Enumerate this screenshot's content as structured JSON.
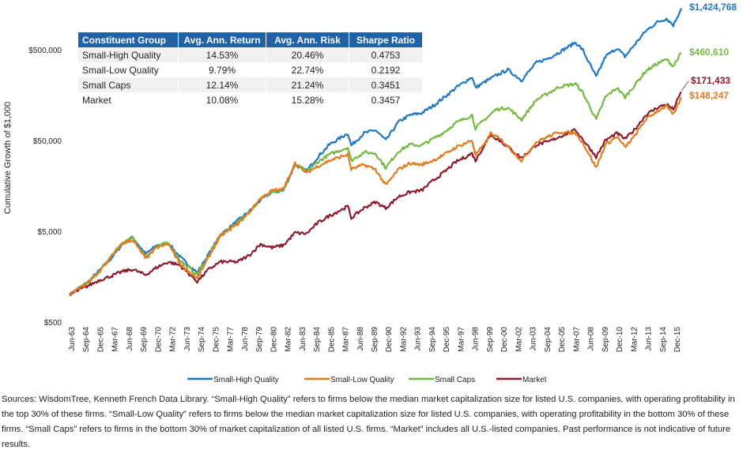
{
  "chart_data": {
    "type": "line",
    "ylabel": "Cumulative Growth of $1,000",
    "y_scale": "log",
    "ylim": [
      500,
      1500000
    ],
    "y_ticks": [
      {
        "value": 500,
        "label": "$500"
      },
      {
        "value": 5000,
        "label": "$5,000"
      },
      {
        "value": 50000,
        "label": "$50,000"
      },
      {
        "value": 500000,
        "label": "$500,000"
      }
    ],
    "x_tick_labels": [
      "Jun-63",
      "Sep-64",
      "Dec-65",
      "Mar-67",
      "Jun-68",
      "Sep-69",
      "Dec-70",
      "Mar-72",
      "Jun-73",
      "Sep-74",
      "Dec-75",
      "Mar-77",
      "Jun-78",
      "Sep-79",
      "Dec-80",
      "Mar-82",
      "Jun-83",
      "Sep-84",
      "Dec-85",
      "Mar-87",
      "Jun-88",
      "Sep-89",
      "Dec-90",
      "Mar-92",
      "Jun-93",
      "Sep-94",
      "Dec-95",
      "Mar-97",
      "Jun-98",
      "Sep-99",
      "Dec-00",
      "Mar-02",
      "Jun-03",
      "Sep-04",
      "Dec-05",
      "Mar-07",
      "Jun-08",
      "Sep-09",
      "Dec-10",
      "Mar-12",
      "Jun-13",
      "Sep-14",
      "Dec-15"
    ],
    "x_start_year": 1963.4,
    "x_end_year": 2016.6,
    "series": [
      {
        "name": "Small-High Quality",
        "color": "#1f77c4",
        "end_label": "$1,424,768",
        "points": [
          [
            1963.4,
            1000
          ],
          [
            1965,
            1380
          ],
          [
            1966,
            1850
          ],
          [
            1967,
            2500
          ],
          [
            1968,
            3600
          ],
          [
            1968.9,
            4300
          ],
          [
            1970,
            2800
          ],
          [
            1971,
            3500
          ],
          [
            1972,
            3700
          ],
          [
            1973,
            2600
          ],
          [
            1974.5,
            1750
          ],
          [
            1975.5,
            2800
          ],
          [
            1976.5,
            4500
          ],
          [
            1978,
            6500
          ],
          [
            1979,
            8200
          ],
          [
            1980,
            11000
          ],
          [
            1981,
            13500
          ],
          [
            1982,
            14000
          ],
          [
            1983,
            27000
          ],
          [
            1984,
            23000
          ],
          [
            1985,
            33000
          ],
          [
            1986,
            45000
          ],
          [
            1987.6,
            60000
          ],
          [
            1987.9,
            44000
          ],
          [
            1989,
            60000
          ],
          [
            1990,
            65000
          ],
          [
            1990.9,
            50000
          ],
          [
            1992,
            80000
          ],
          [
            1993,
            95000
          ],
          [
            1994,
            100000
          ],
          [
            1995,
            120000
          ],
          [
            1996,
            150000
          ],
          [
            1997,
            190000
          ],
          [
            1998.4,
            250000
          ],
          [
            1998.7,
            190000
          ],
          [
            1999.5,
            220000
          ],
          [
            2000.5,
            260000
          ],
          [
            2001.5,
            300000
          ],
          [
            2002.7,
            230000
          ],
          [
            2004,
            360000
          ],
          [
            2005,
            400000
          ],
          [
            2006,
            470000
          ],
          [
            2007.4,
            600000
          ],
          [
            2008,
            500000
          ],
          [
            2009.2,
            250000
          ],
          [
            2010,
            420000
          ],
          [
            2011,
            520000
          ],
          [
            2011.7,
            420000
          ],
          [
            2012.5,
            560000
          ],
          [
            2013.5,
            800000
          ],
          [
            2014.5,
            1000000
          ],
          [
            2015.3,
            1100000
          ],
          [
            2015.9,
            930000
          ],
          [
            2016.6,
            1424768
          ]
        ]
      },
      {
        "name": "Small-Low Quality",
        "color": "#e07b20",
        "end_label": "$148,247",
        "points": [
          [
            1963.4,
            1000
          ],
          [
            1965,
            1350
          ],
          [
            1966,
            1800
          ],
          [
            1967,
            2600
          ],
          [
            1968,
            3700
          ],
          [
            1968.9,
            4000
          ],
          [
            1970,
            2500
          ],
          [
            1971,
            3300
          ],
          [
            1972,
            3600
          ],
          [
            1973,
            2200
          ],
          [
            1974.5,
            1500
          ],
          [
            1975.5,
            2600
          ],
          [
            1976.5,
            4400
          ],
          [
            1978,
            6000
          ],
          [
            1979,
            8000
          ],
          [
            1980,
            11500
          ],
          [
            1981,
            14000
          ],
          [
            1982,
            14500
          ],
          [
            1983,
            28000
          ],
          [
            1984,
            22000
          ],
          [
            1985,
            26000
          ],
          [
            1986,
            30000
          ],
          [
            1987.6,
            35000
          ],
          [
            1987.9,
            24000
          ],
          [
            1989,
            27000
          ],
          [
            1990,
            24000
          ],
          [
            1990.9,
            16000
          ],
          [
            1992,
            24000
          ],
          [
            1993,
            28000
          ],
          [
            1994,
            27000
          ],
          [
            1995,
            30000
          ],
          [
            1996,
            35000
          ],
          [
            1997,
            42000
          ],
          [
            1998.4,
            50000
          ],
          [
            1998.7,
            35000
          ],
          [
            1999.5,
            45000
          ],
          [
            2000,
            60000
          ],
          [
            2001,
            50000
          ],
          [
            2002.7,
            30000
          ],
          [
            2004,
            48000
          ],
          [
            2005,
            55000
          ],
          [
            2006,
            62000
          ],
          [
            2007.4,
            60000
          ],
          [
            2008,
            48000
          ],
          [
            2009.2,
            25000
          ],
          [
            2010,
            45000
          ],
          [
            2011,
            55000
          ],
          [
            2011.7,
            42000
          ],
          [
            2012.5,
            55000
          ],
          [
            2013.5,
            85000
          ],
          [
            2014.5,
            105000
          ],
          [
            2015.3,
            120000
          ],
          [
            2015.9,
            95000
          ],
          [
            2016.6,
            148247
          ]
        ]
      },
      {
        "name": "Small Caps",
        "color": "#76b843",
        "end_label": "$460,610",
        "points": [
          [
            1963.4,
            1000
          ],
          [
            1965,
            1360
          ],
          [
            1966,
            1800
          ],
          [
            1967,
            2600
          ],
          [
            1968,
            3700
          ],
          [
            1968.9,
            4200
          ],
          [
            1970,
            2600
          ],
          [
            1971,
            3400
          ],
          [
            1972,
            3700
          ],
          [
            1973,
            2400
          ],
          [
            1974.5,
            1650
          ],
          [
            1975.5,
            2700
          ],
          [
            1976.5,
            4500
          ],
          [
            1978,
            6200
          ],
          [
            1979,
            8100
          ],
          [
            1980,
            11200
          ],
          [
            1981,
            13800
          ],
          [
            1982,
            14200
          ],
          [
            1983,
            27500
          ],
          [
            1984,
            22500
          ],
          [
            1985,
            29000
          ],
          [
            1986,
            35000
          ],
          [
            1987.6,
            42000
          ],
          [
            1987.9,
            30000
          ],
          [
            1989,
            37000
          ],
          [
            1990,
            36000
          ],
          [
            1990.9,
            25000
          ],
          [
            1992,
            38000
          ],
          [
            1993,
            45000
          ],
          [
            1994,
            44000
          ],
          [
            1995,
            52000
          ],
          [
            1996,
            62000
          ],
          [
            1997,
            78000
          ],
          [
            1998.4,
            95000
          ],
          [
            1998.7,
            68000
          ],
          [
            1999.5,
            85000
          ],
          [
            2000.5,
            110000
          ],
          [
            2001.5,
            115000
          ],
          [
            2002.7,
            85000
          ],
          [
            2004,
            140000
          ],
          [
            2005,
            165000
          ],
          [
            2006,
            195000
          ],
          [
            2007.4,
            210000
          ],
          [
            2008,
            170000
          ],
          [
            2009.2,
            85000
          ],
          [
            2010,
            150000
          ],
          [
            2011,
            190000
          ],
          [
            2011.7,
            150000
          ],
          [
            2012.5,
            200000
          ],
          [
            2013.5,
            290000
          ],
          [
            2014.5,
            350000
          ],
          [
            2015.3,
            390000
          ],
          [
            2015.9,
            330000
          ],
          [
            2016.6,
            460610
          ]
        ]
      },
      {
        "name": "Market",
        "color": "#8b1a2b",
        "end_label": "$171,433",
        "points": [
          [
            1963.4,
            1000
          ],
          [
            1965,
            1250
          ],
          [
            1966,
            1450
          ],
          [
            1967,
            1600
          ],
          [
            1968,
            1800
          ],
          [
            1968.9,
            1900
          ],
          [
            1970,
            1650
          ],
          [
            1971,
            2000
          ],
          [
            1972,
            2300
          ],
          [
            1973,
            2100
          ],
          [
            1974.5,
            1400
          ],
          [
            1975.5,
            1900
          ],
          [
            1976.5,
            2300
          ],
          [
            1978,
            2300
          ],
          [
            1979,
            2700
          ],
          [
            1980,
            3600
          ],
          [
            1981,
            3300
          ],
          [
            1982,
            3500
          ],
          [
            1983,
            4800
          ],
          [
            1984,
            4700
          ],
          [
            1985,
            6200
          ],
          [
            1986,
            7400
          ],
          [
            1987.6,
            9400
          ],
          [
            1987.9,
            7000
          ],
          [
            1989,
            9000
          ],
          [
            1990,
            10500
          ],
          [
            1990.9,
            9000
          ],
          [
            1992,
            12000
          ],
          [
            1993,
            13500
          ],
          [
            1994,
            14000
          ],
          [
            1995,
            18000
          ],
          [
            1996,
            22500
          ],
          [
            1997,
            29000
          ],
          [
            1998.4,
            36000
          ],
          [
            1998.7,
            30000
          ],
          [
            1999.5,
            45000
          ],
          [
            2000,
            58000
          ],
          [
            2001,
            48000
          ],
          [
            2002.7,
            32000
          ],
          [
            2004,
            45000
          ],
          [
            2005,
            48000
          ],
          [
            2006,
            55000
          ],
          [
            2007.4,
            65000
          ],
          [
            2008,
            52000
          ],
          [
            2009.2,
            33000
          ],
          [
            2010,
            50000
          ],
          [
            2011,
            60000
          ],
          [
            2011.7,
            52000
          ],
          [
            2012.5,
            65000
          ],
          [
            2013.5,
            95000
          ],
          [
            2014.5,
            115000
          ],
          [
            2015.3,
            125000
          ],
          [
            2015.9,
            110000
          ],
          [
            2016.6,
            171433
          ]
        ]
      }
    ]
  },
  "table": {
    "headers": [
      "Constituent Group",
      "Avg. Ann. Return",
      "Avg. Ann. Risk",
      "Sharpe Ratio"
    ],
    "rows": [
      [
        "Small-High Quality",
        "14.53%",
        "20.46%",
        "0.4753"
      ],
      [
        "Small-Low Quality",
        "9.79%",
        "22.74%",
        "0.2192"
      ],
      [
        "Small Caps",
        "12.14%",
        "21.24%",
        "0.3451"
      ],
      [
        "Market",
        "10.08%",
        "15.28%",
        "0.3457"
      ]
    ]
  },
  "source_note": "Sources: WisdomTree, Kenneth French Data Library. “Small-High Quality” refers to firms below the median market capitalization size for listed U.S. companies, with operating profitability in the top 30% of these firms. “Small-Low Quality” refers to firms below the median market capitalization size for listed U.S. companies, with operating profitability in the bottom 30% of these firms. “Small Caps” refers to firms in the bottom 30% of market capitalization of all listed U.S. firms. “Market” includes all U.S.-listed companies. Past performance is not indicative of future results."
}
